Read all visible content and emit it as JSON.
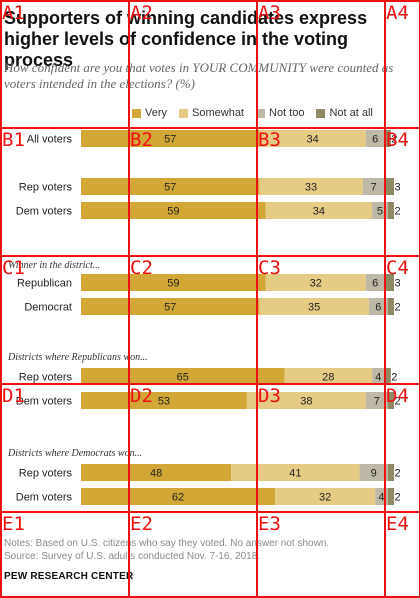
{
  "chart_data": {
    "type": "bar",
    "orientation": "horizontal",
    "stacked": true,
    "title": "Supporters of winning candidates express higher levels of confidence in the voting process",
    "subtitle": "How confident are you that votes in YOUR COMMUNITY were counted as voters intended in the elections? (%)",
    "legend_position": "top",
    "series": [
      {
        "name": "Very",
        "color": "#d2a736"
      },
      {
        "name": "Somewhat",
        "color": "#e6cb85"
      },
      {
        "name": "Not too",
        "color": "#bdb9a6"
      },
      {
        "name": "Not at all",
        "color": "#8f8a64"
      }
    ],
    "xlim": [
      0,
      100
    ],
    "groups": [
      {
        "heading": "",
        "rows": [
          {
            "label": "All voters",
            "values": [
              57,
              34,
              6,
              2
            ]
          },
          {
            "label": "Rep voters",
            "values": [
              57,
              33,
              7,
              3
            ]
          },
          {
            "label": "Dem voters",
            "values": [
              59,
              34,
              5,
              2
            ]
          }
        ]
      },
      {
        "heading": "Winner in the district...",
        "rows": [
          {
            "label": "Republican",
            "values": [
              59,
              32,
              6,
              3
            ]
          },
          {
            "label": "Democrat",
            "values": [
              57,
              35,
              6,
              2
            ]
          }
        ]
      },
      {
        "heading": "Districts where Republicans won...",
        "rows": [
          {
            "label": "Rep voters",
            "values": [
              65,
              28,
              4,
              2
            ]
          },
          {
            "label": "Dem voters",
            "values": [
              53,
              38,
              7,
              2
            ]
          }
        ]
      },
      {
        "heading": "Districts where Democrats won...",
        "rows": [
          {
            "label": "Rep voters",
            "values": [
              48,
              41,
              9,
              2
            ]
          },
          {
            "label": "Dem voters",
            "values": [
              62,
              32,
              4,
              2
            ]
          }
        ]
      }
    ]
  },
  "notes": {
    "line1": "Notes: Based on U.S. citizens who say they voted. No answer not shown.",
    "line2": "Source: Survey of U.S. adults conducted Nov. 7-16, 2018."
  },
  "logo": "PEW RESEARCH CENTER",
  "grid_overlay": {
    "color": "#ee1111",
    "labels": [
      "A1",
      "A2",
      "A3",
      "A4",
      "B1",
      "B2",
      "B3",
      "B4",
      "C1",
      "C2",
      "C3",
      "C4",
      "D1",
      "D2",
      "D3",
      "D4",
      "E1",
      "E2",
      "E3",
      "E4"
    ]
  }
}
